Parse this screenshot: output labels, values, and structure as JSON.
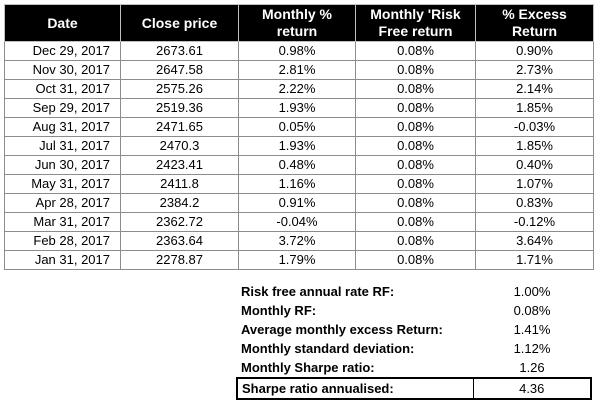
{
  "table": {
    "headers": {
      "date": "Date",
      "close": "Close price",
      "monthly_return": "Monthly % return",
      "risk_free": "Monthly 'Risk Free return",
      "excess": "% Excess Return"
    },
    "rows": [
      {
        "date": "Dec 29, 2017",
        "close": "2673.61",
        "monthly_return": "0.98%",
        "risk_free": "0.08%",
        "excess": "0.90%"
      },
      {
        "date": "Nov 30, 2017",
        "close": "2647.58",
        "monthly_return": "2.81%",
        "risk_free": "0.08%",
        "excess": "2.73%"
      },
      {
        "date": "Oct 31, 2017",
        "close": "2575.26",
        "monthly_return": "2.22%",
        "risk_free": "0.08%",
        "excess": "2.14%"
      },
      {
        "date": "Sep 29, 2017",
        "close": "2519.36",
        "monthly_return": "1.93%",
        "risk_free": "0.08%",
        "excess": "1.85%"
      },
      {
        "date": "Aug 31, 2017",
        "close": "2471.65",
        "monthly_return": "0.05%",
        "risk_free": "0.08%",
        "excess": "-0.03%"
      },
      {
        "date": "Jul 31, 2017",
        "close": "2470.3",
        "monthly_return": "1.93%",
        "risk_free": "0.08%",
        "excess": "1.85%"
      },
      {
        "date": "Jun 30, 2017",
        "close": "2423.41",
        "monthly_return": "0.48%",
        "risk_free": "0.08%",
        "excess": "0.40%"
      },
      {
        "date": "May 31, 2017",
        "close": "2411.8",
        "monthly_return": "1.16%",
        "risk_free": "0.08%",
        "excess": "1.07%"
      },
      {
        "date": "Apr 28, 2017",
        "close": "2384.2",
        "monthly_return": "0.91%",
        "risk_free": "0.08%",
        "excess": "0.83%"
      },
      {
        "date": "Mar 31, 2017",
        "close": "2362.72",
        "monthly_return": "-0.04%",
        "risk_free": "0.08%",
        "excess": "-0.12%"
      },
      {
        "date": "Feb 28, 2017",
        "close": "2363.64",
        "monthly_return": "3.72%",
        "risk_free": "0.08%",
        "excess": "3.64%"
      },
      {
        "date": "Jan 31, 2017",
        "close": "2278.87",
        "monthly_return": "1.79%",
        "risk_free": "0.08%",
        "excess": "1.71%"
      }
    ]
  },
  "summary": [
    {
      "label": "Risk free annual rate RF:",
      "value": "1.00%"
    },
    {
      "label": "Monthly RF:",
      "value": "0.08%"
    },
    {
      "label": "Average monthly excess Return:",
      "value": "1.41%"
    },
    {
      "label": "Monthly standard deviation:",
      "value": "1.12%"
    },
    {
      "label": "Monthly Sharpe ratio:",
      "value": "1.26"
    },
    {
      "label": "Sharpe ratio annualised:",
      "value": "4.36"
    }
  ]
}
